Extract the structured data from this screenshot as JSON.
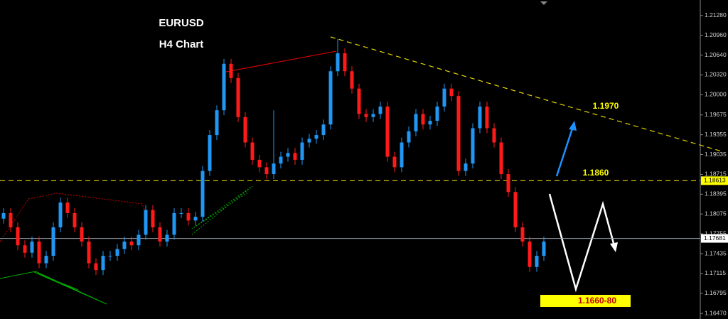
{
  "chart_data": {
    "type": "candlestick",
    "title": "EURUSD",
    "subtitle": "H4 Chart",
    "annotations": [
      "1.1970",
      "1.1860",
      "1.1660-80"
    ],
    "up_color": "#2196f3",
    "down_color": "#ff1a1a",
    "ylim": [
      1.1638,
      1.2153
    ],
    "yticks": [
      {
        "value": 1.2128,
        "label": "1.21280"
      },
      {
        "value": 1.2096,
        "label": "1.20960"
      },
      {
        "value": 1.2064,
        "label": "1.20640"
      },
      {
        "value": 1.2032,
        "label": "1.20320"
      },
      {
        "value": 1.2,
        "label": "1.20000"
      },
      1.19675,
      1.19355,
      1.19035,
      1.18715,
      1.18395,
      1.18075,
      1.17755,
      1.17435,
      1.17115,
      1.16795,
      {
        "value": 1.1647,
        "label": "1.16470"
      }
    ],
    "support_level": 1.18613,
    "last_price": 1.17681,
    "open": [
      1.18,
      1.1809,
      1.1786,
      1.1757,
      1.1745,
      1.1763,
      1.1728,
      1.174,
      1.1786,
      1.1826,
      1.1809,
      1.1786,
      1.1763,
      1.1728,
      1.1717,
      1.174,
      1.174,
      1.1751,
      1.1763,
      1.1757,
      1.1774,
      1.1814,
      1.1786,
      1.1763,
      1.1774,
      1.1809,
      1.1809,
      1.1797,
      1.1803,
      1.1877,
      1.1935,
      1.1975,
      1.205,
      1.2027,
      1.1964,
      1.1923,
      1.1895,
      1.1883,
      1.1872,
      1.1889,
      1.19,
      1.1906,
      1.1895,
      1.1923,
      1.1929,
      1.1935,
      1.1952,
      1.2038,
      1.2067,
      1.2038,
      1.201,
      1.1969,
      1.1964,
      1.1969,
      1.1981,
      1.19,
      1.1883,
      1.1923,
      1.1941,
      1.1969,
      1.1952,
      1.1958,
      1.1981,
      1.201,
      1.1998,
      1.1877,
      1.1889,
      1.1946,
      1.1981,
      1.1946,
      1.1923,
      1.1872,
      1.1843,
      1.1786,
      1.1763,
      1.1722,
      1.174
    ],
    "high": [
      1.1817,
      1.1817,
      1.1794,
      1.1765,
      1.1771,
      1.1771,
      1.1748,
      1.1794,
      1.1834,
      1.1834,
      1.1817,
      1.1794,
      1.1771,
      1.1736,
      1.1748,
      1.1748,
      1.1759,
      1.1771,
      1.1771,
      1.1782,
      1.1822,
      1.1822,
      1.1794,
      1.1782,
      1.1817,
      1.1817,
      1.1817,
      1.1811,
      1.1885,
      1.1943,
      1.1983,
      1.2058,
      1.2058,
      1.2035,
      1.1972,
      1.1931,
      1.1903,
      1.1891,
      1.1975,
      1.1908,
      1.1914,
      1.1914,
      1.1931,
      1.1937,
      1.1943,
      1.196,
      1.2046,
      1.209,
      1.2075,
      1.2046,
      1.2018,
      1.1977,
      1.1977,
      1.1989,
      1.1989,
      1.1908,
      1.1931,
      1.1949,
      1.1977,
      1.1977,
      1.1966,
      1.1989,
      1.2018,
      1.2018,
      1.2006,
      1.1897,
      1.1954,
      1.1989,
      1.1989,
      1.1954,
      1.1931,
      1.188,
      1.1851,
      1.1794,
      1.1771,
      1.1748,
      1.1771
    ],
    "low": [
      1.1792,
      1.1778,
      1.1749,
      1.1737,
      1.1737,
      1.172,
      1.172,
      1.1732,
      1.1778,
      1.1801,
      1.1778,
      1.1755,
      1.172,
      1.1709,
      1.1709,
      1.1732,
      1.1732,
      1.1743,
      1.1749,
      1.1749,
      1.1766,
      1.1778,
      1.1755,
      1.1755,
      1.1766,
      1.1801,
      1.1789,
      1.1789,
      1.1795,
      1.1869,
      1.1927,
      1.1967,
      1.2019,
      1.1956,
      1.1915,
      1.1887,
      1.1875,
      1.1864,
      1.1864,
      1.1881,
      1.1892,
      1.1887,
      1.1887,
      1.1915,
      1.1921,
      1.1927,
      1.1944,
      1.203,
      1.203,
      1.2002,
      1.1961,
      1.1956,
      1.1956,
      1.1961,
      1.1892,
      1.1875,
      1.1875,
      1.1915,
      1.1933,
      1.1944,
      1.1944,
      1.195,
      1.1973,
      1.199,
      1.1869,
      1.1869,
      1.1881,
      1.1938,
      1.1938,
      1.1915,
      1.1864,
      1.1835,
      1.1778,
      1.1755,
      1.1714,
      1.1714,
      1.1732
    ],
    "close": [
      1.1809,
      1.1786,
      1.1757,
      1.1745,
      1.1763,
      1.1728,
      1.174,
      1.1786,
      1.1826,
      1.1809,
      1.1786,
      1.1763,
      1.1728,
      1.1717,
      1.174,
      1.174,
      1.1751,
      1.1763,
      1.1757,
      1.1774,
      1.1814,
      1.1786,
      1.1763,
      1.1774,
      1.1809,
      1.1809,
      1.1797,
      1.1803,
      1.1877,
      1.1935,
      1.1975,
      1.205,
      1.2027,
      1.1964,
      1.1923,
      1.1895,
      1.1883,
      1.1872,
      1.1889,
      1.19,
      1.1906,
      1.1895,
      1.1923,
      1.1929,
      1.1935,
      1.1952,
      1.2038,
      1.2067,
      1.2038,
      1.201,
      1.1969,
      1.1964,
      1.1969,
      1.1981,
      1.19,
      1.1883,
      1.1923,
      1.1941,
      1.1969,
      1.1952,
      1.1958,
      1.1981,
      1.201,
      1.1998,
      1.1877,
      1.1889,
      1.1946,
      1.1981,
      1.1946,
      1.1923,
      1.1872,
      1.1843,
      1.1786,
      1.1763,
      1.1722,
      1.174,
      1.1763
    ]
  }
}
